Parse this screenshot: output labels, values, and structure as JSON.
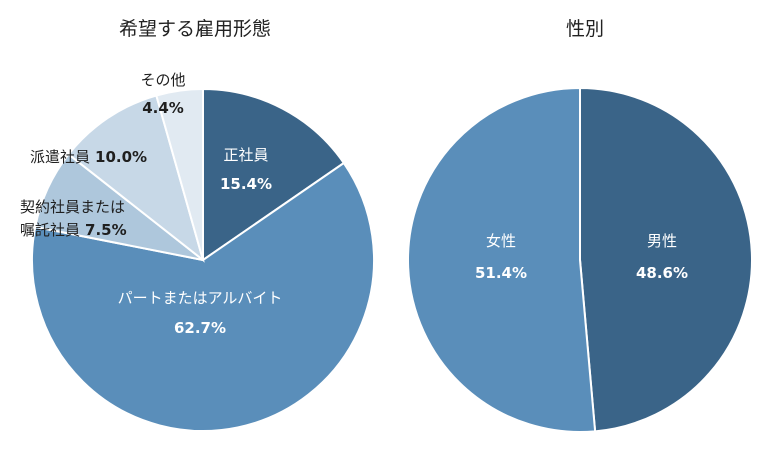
{
  "colors": {
    "dark": "#3a6488",
    "medium": "#5a8eba",
    "light": "#aec7dc",
    "lighter": "#c7d8e7",
    "lightest": "#e1eaf2",
    "edge": "#ffffff"
  },
  "chart_data": [
    {
      "type": "pie",
      "title": "希望する雇用形態",
      "slices": [
        {
          "name": "正社員",
          "name_line2": "",
          "value": 15.4,
          "label": "15.4%",
          "color": "#3a6488",
          "text": "white"
        },
        {
          "name": "パートまたはアルバイト",
          "name_line2": "",
          "value": 62.7,
          "label": "62.7%",
          "color": "#5a8eba",
          "text": "white"
        },
        {
          "name": "契約社員または",
          "name_line2": "嘱託社員",
          "value": 7.5,
          "label": "7.5%",
          "color": "#aec7dc",
          "text": "dark"
        },
        {
          "name": "派遣社員",
          "name_line2": "",
          "value": 10.0,
          "label": "10.0%",
          "color": "#c7d8e7",
          "text": "dark"
        },
        {
          "name": "その他",
          "name_line2": "",
          "value": 4.4,
          "label": "4.4%",
          "color": "#e1eaf2",
          "text": "dark"
        }
      ]
    },
    {
      "type": "pie",
      "title": "性別",
      "slices": [
        {
          "name": "男性",
          "value": 48.6,
          "label": "48.6%",
          "color": "#3a6488",
          "text": "white"
        },
        {
          "name": "女性",
          "value": 51.4,
          "label": "51.4%",
          "color": "#5a8eba",
          "text": "white"
        }
      ]
    }
  ]
}
